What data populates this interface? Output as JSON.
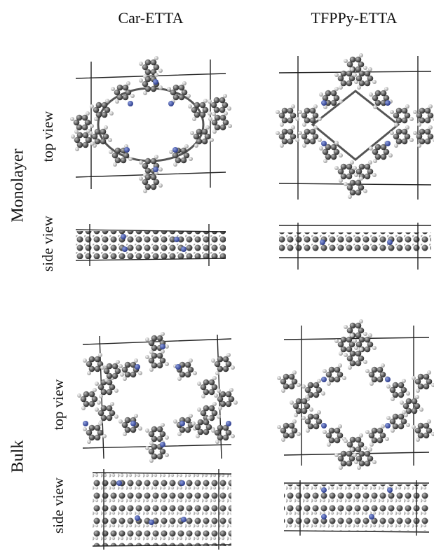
{
  "columns": [
    "Car-ETTA",
    "TFPPy-ETTA"
  ],
  "rows": [
    {
      "label": "Monolayer",
      "views": [
        "top view",
        "side view"
      ]
    },
    {
      "label": "Bulk",
      "views": [
        "top view",
        "side view"
      ]
    }
  ]
}
